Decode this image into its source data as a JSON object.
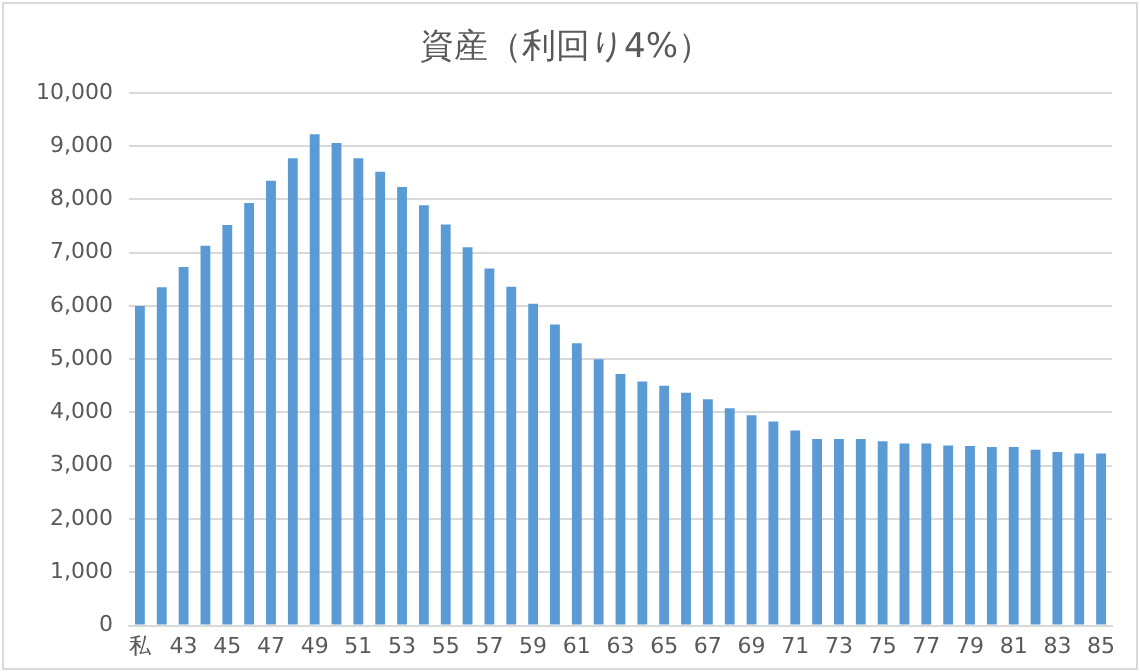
{
  "chart_data": {
    "type": "bar",
    "title": "資産（利回り4%）",
    "categories": [
      "私",
      null,
      "43",
      null,
      "45",
      null,
      "47",
      null,
      "49",
      null,
      "51",
      null,
      "53",
      null,
      "55",
      null,
      "57",
      null,
      "59",
      null,
      "61",
      null,
      "63",
      null,
      "65",
      null,
      "67",
      null,
      "69",
      null,
      "71",
      null,
      "73",
      null,
      "75",
      null,
      "77",
      null,
      "79",
      null,
      "81",
      null,
      "83",
      null,
      "85"
    ],
    "values": [
      6000,
      6350,
      6730,
      7130,
      7520,
      7930,
      8350,
      8770,
      9220,
      9060,
      8770,
      8520,
      8230,
      7890,
      7530,
      7100,
      6700,
      6360,
      6040,
      5650,
      5300,
      5000,
      4720,
      4580,
      4500,
      4370,
      4250,
      4080,
      3950,
      3830,
      3660,
      3500,
      3500,
      3500,
      3460,
      3420,
      3420,
      3380,
      3370,
      3350,
      3350,
      3300,
      3260,
      3230,
      3230
    ],
    "color": "#5b9bd5",
    "ylim": [
      0,
      10000
    ],
    "yticks": [
      {
        "value": 0,
        "label": "0"
      },
      {
        "value": 1000,
        "label": "1,000"
      },
      {
        "value": 2000,
        "label": "2,000"
      },
      {
        "value": 3000,
        "label": "3,000"
      },
      {
        "value": 4000,
        "label": "4,000"
      },
      {
        "value": 5000,
        "label": "5,000"
      },
      {
        "value": 6000,
        "label": "6,000"
      },
      {
        "value": 7000,
        "label": "7,000"
      },
      {
        "value": 8000,
        "label": "8,000"
      },
      {
        "value": 9000,
        "label": "9,000"
      },
      {
        "value": 10000,
        "label": "10,000"
      }
    ],
    "grid": "y"
  }
}
